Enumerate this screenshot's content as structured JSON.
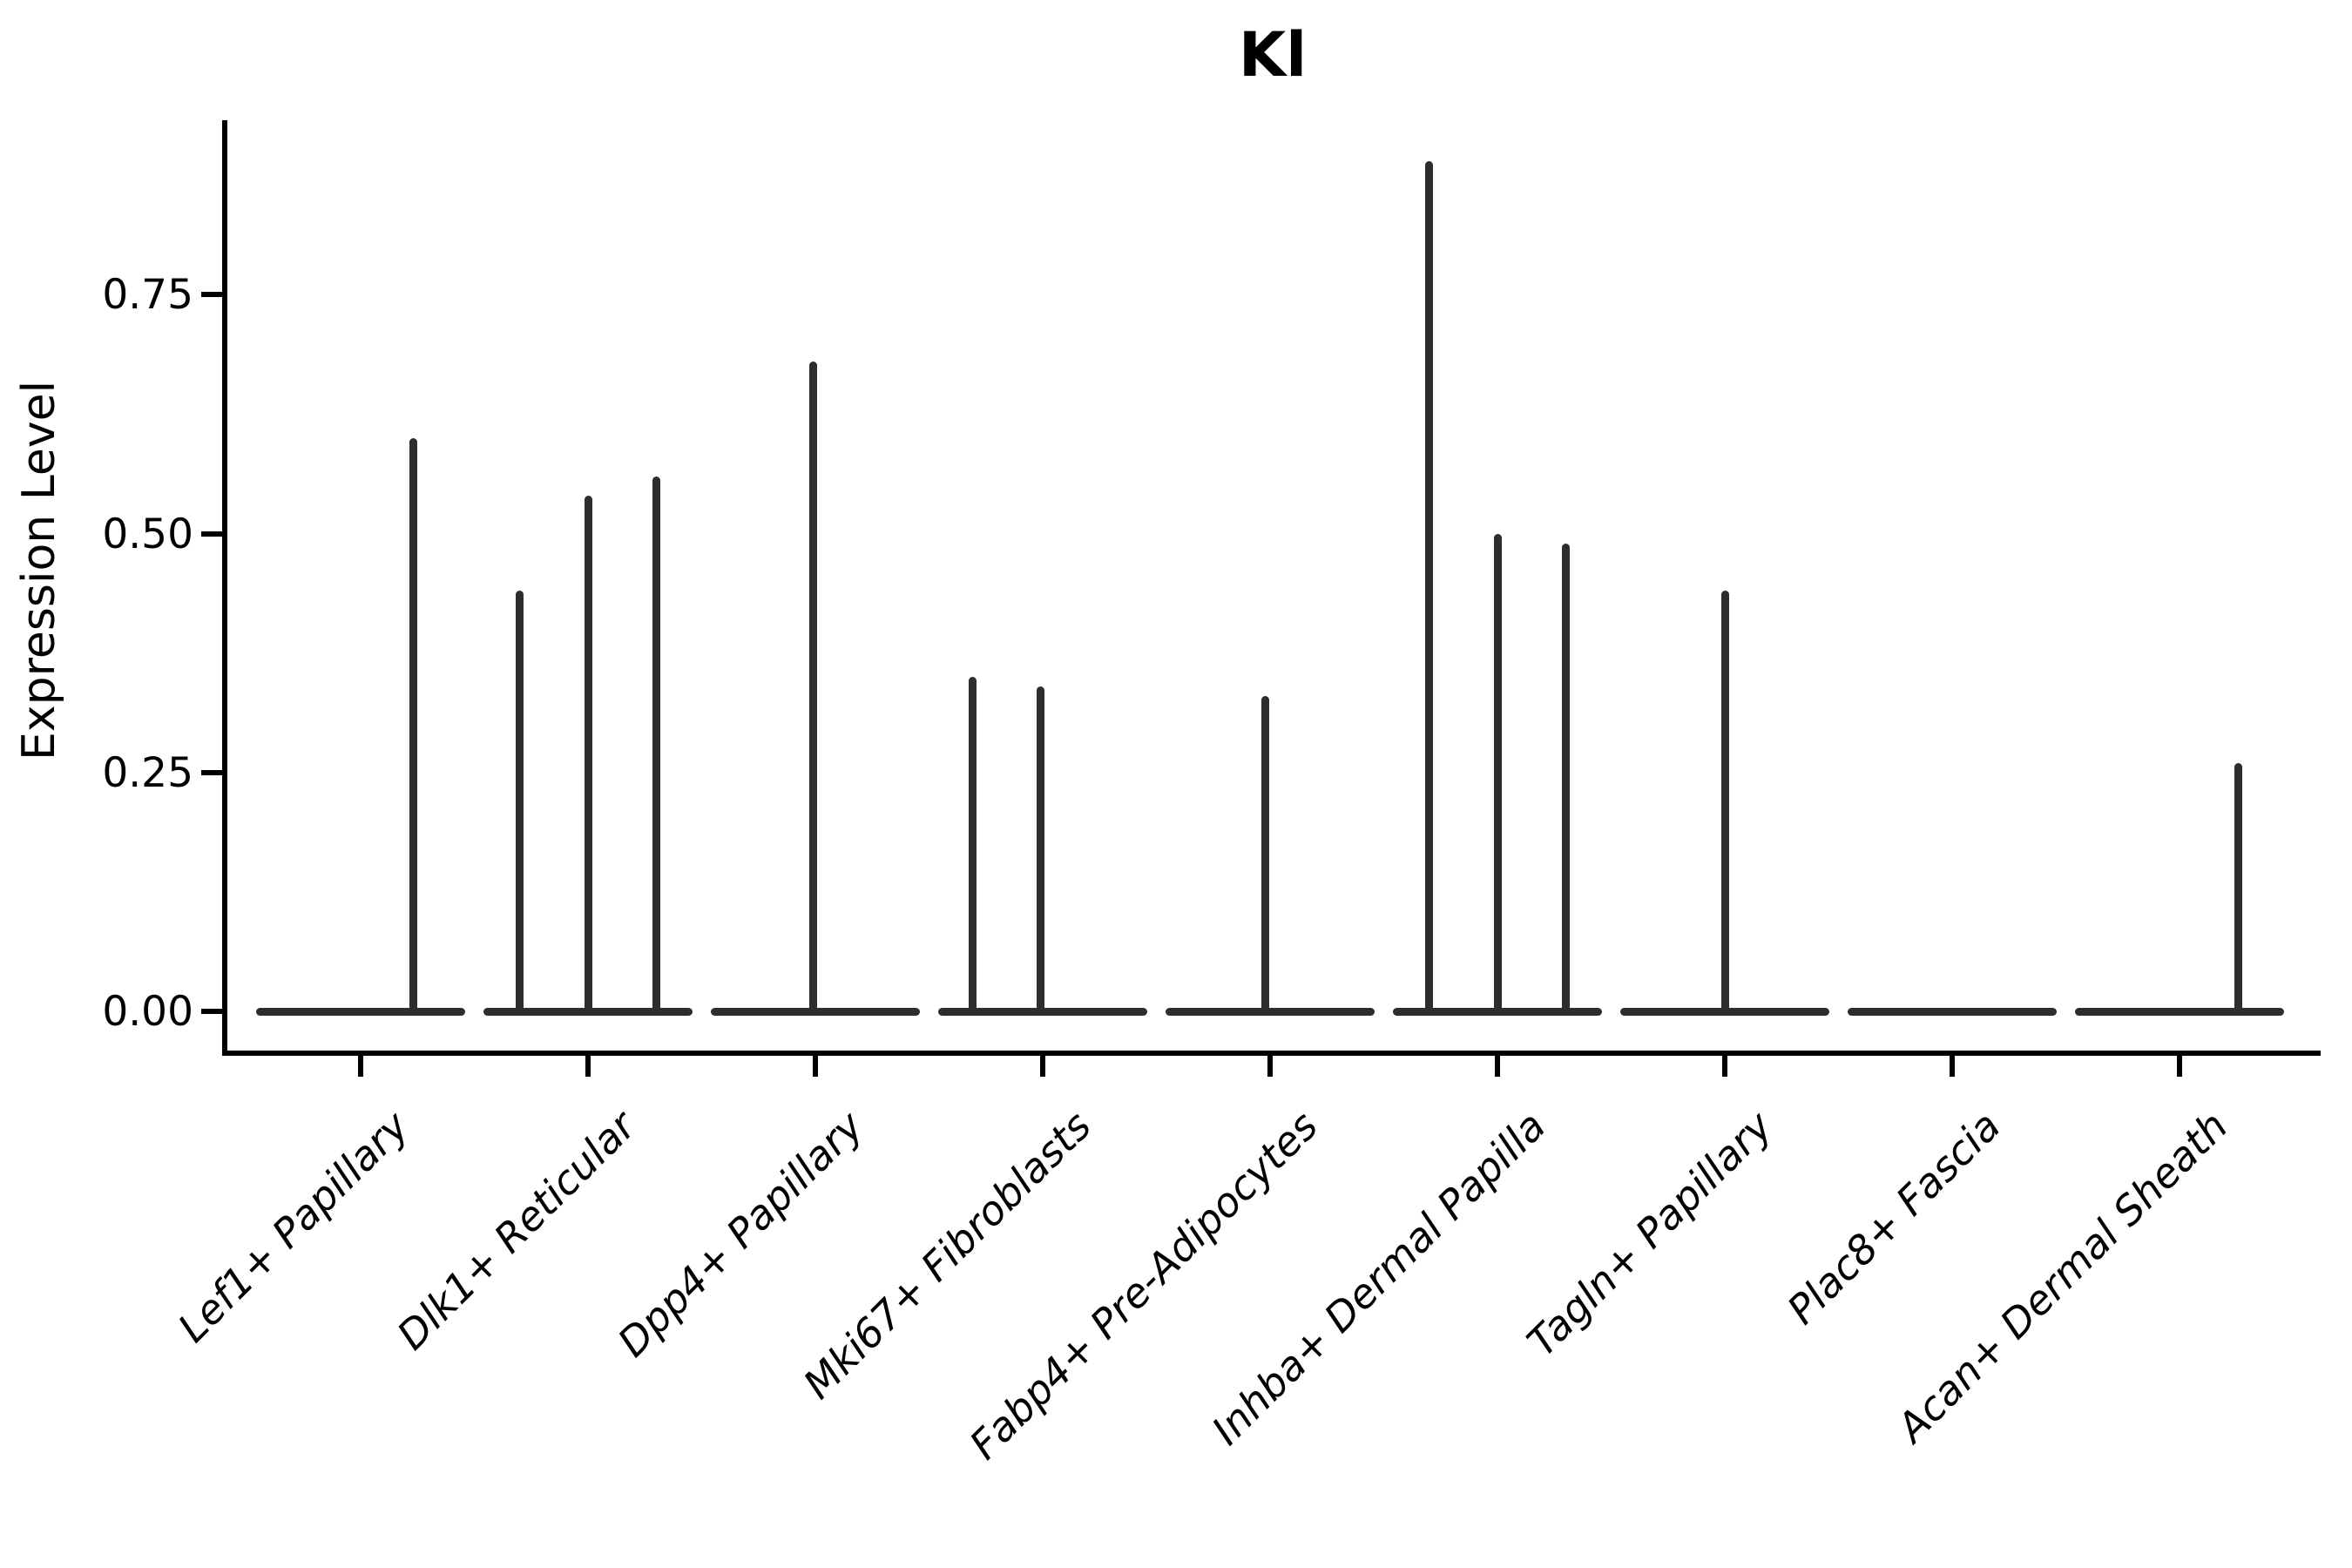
{
  "title": "Kl",
  "y_axis": {
    "label": "Expression Level",
    "ticks": [
      "0.00",
      "0.25",
      "0.50",
      "0.75"
    ],
    "tick_values": [
      0.0,
      0.25,
      0.5,
      0.75
    ]
  },
  "chart_data": {
    "type": "violin",
    "title": "Kl",
    "xlabel": "",
    "ylabel": "Expression Level",
    "ylim": [
      0,
      0.93
    ],
    "yticks": [
      0.0,
      0.25,
      0.5,
      0.75
    ],
    "grid": false,
    "legend": false,
    "categories": [
      "Lef1+ Papillary",
      "Dlk1+ Reticular",
      "Dpp4+ Papillary",
      "Mki67+ Fibroblasts",
      "Fabp4+ Pre-Adipocytes",
      "Inhba+ Dermal Papilla",
      "Tagln+ Papillary",
      "Plac8+ Fascia",
      "Acan+ Dermal Sheath"
    ],
    "violins": [
      {
        "category": "Lef1+ Papillary",
        "baseline_value": 0.0,
        "spikes": [
          {
            "offset": 0.23,
            "value": 0.6
          }
        ]
      },
      {
        "category": "Dlk1+ Reticular",
        "baseline_value": 0.0,
        "spikes": [
          {
            "offset": -0.3,
            "value": 0.44
          },
          {
            "offset": 0.0,
            "value": 0.54
          },
          {
            "offset": 0.3,
            "value": 0.56
          }
        ]
      },
      {
        "category": "Dpp4+ Papillary",
        "baseline_value": 0.0,
        "spikes": [
          {
            "offset": -0.01,
            "value": 0.68
          }
        ]
      },
      {
        "category": "Mki67+ Fibroblasts",
        "baseline_value": 0.0,
        "spikes": [
          {
            "offset": -0.31,
            "value": 0.35
          },
          {
            "offset": -0.01,
            "value": 0.34
          }
        ]
      },
      {
        "category": "Fabp4+ Pre-Adipocytes",
        "baseline_value": 0.0,
        "spikes": [
          {
            "offset": -0.02,
            "value": 0.33
          }
        ]
      },
      {
        "category": "Inhba+ Dermal Papilla",
        "baseline_value": 0.0,
        "spikes": [
          {
            "offset": -0.3,
            "value": 0.89
          },
          {
            "offset": 0.0,
            "value": 0.5
          },
          {
            "offset": 0.3,
            "value": 0.49
          }
        ]
      },
      {
        "category": "Tagln+ Papillary",
        "baseline_value": 0.0,
        "spikes": [
          {
            "offset": 0.0,
            "value": 0.44
          }
        ]
      },
      {
        "category": "Plac8+ Fascia",
        "baseline_value": 0.0,
        "spikes": []
      },
      {
        "category": "Acan+ Dermal Sheath",
        "baseline_value": 0.0,
        "spikes": [
          {
            "offset": 0.26,
            "value": 0.26
          }
        ]
      }
    ],
    "colors": {
      "violin_stroke": "#2d2d2d",
      "axis": "#000000",
      "text": "#000000",
      "background": "#ffffff"
    }
  }
}
